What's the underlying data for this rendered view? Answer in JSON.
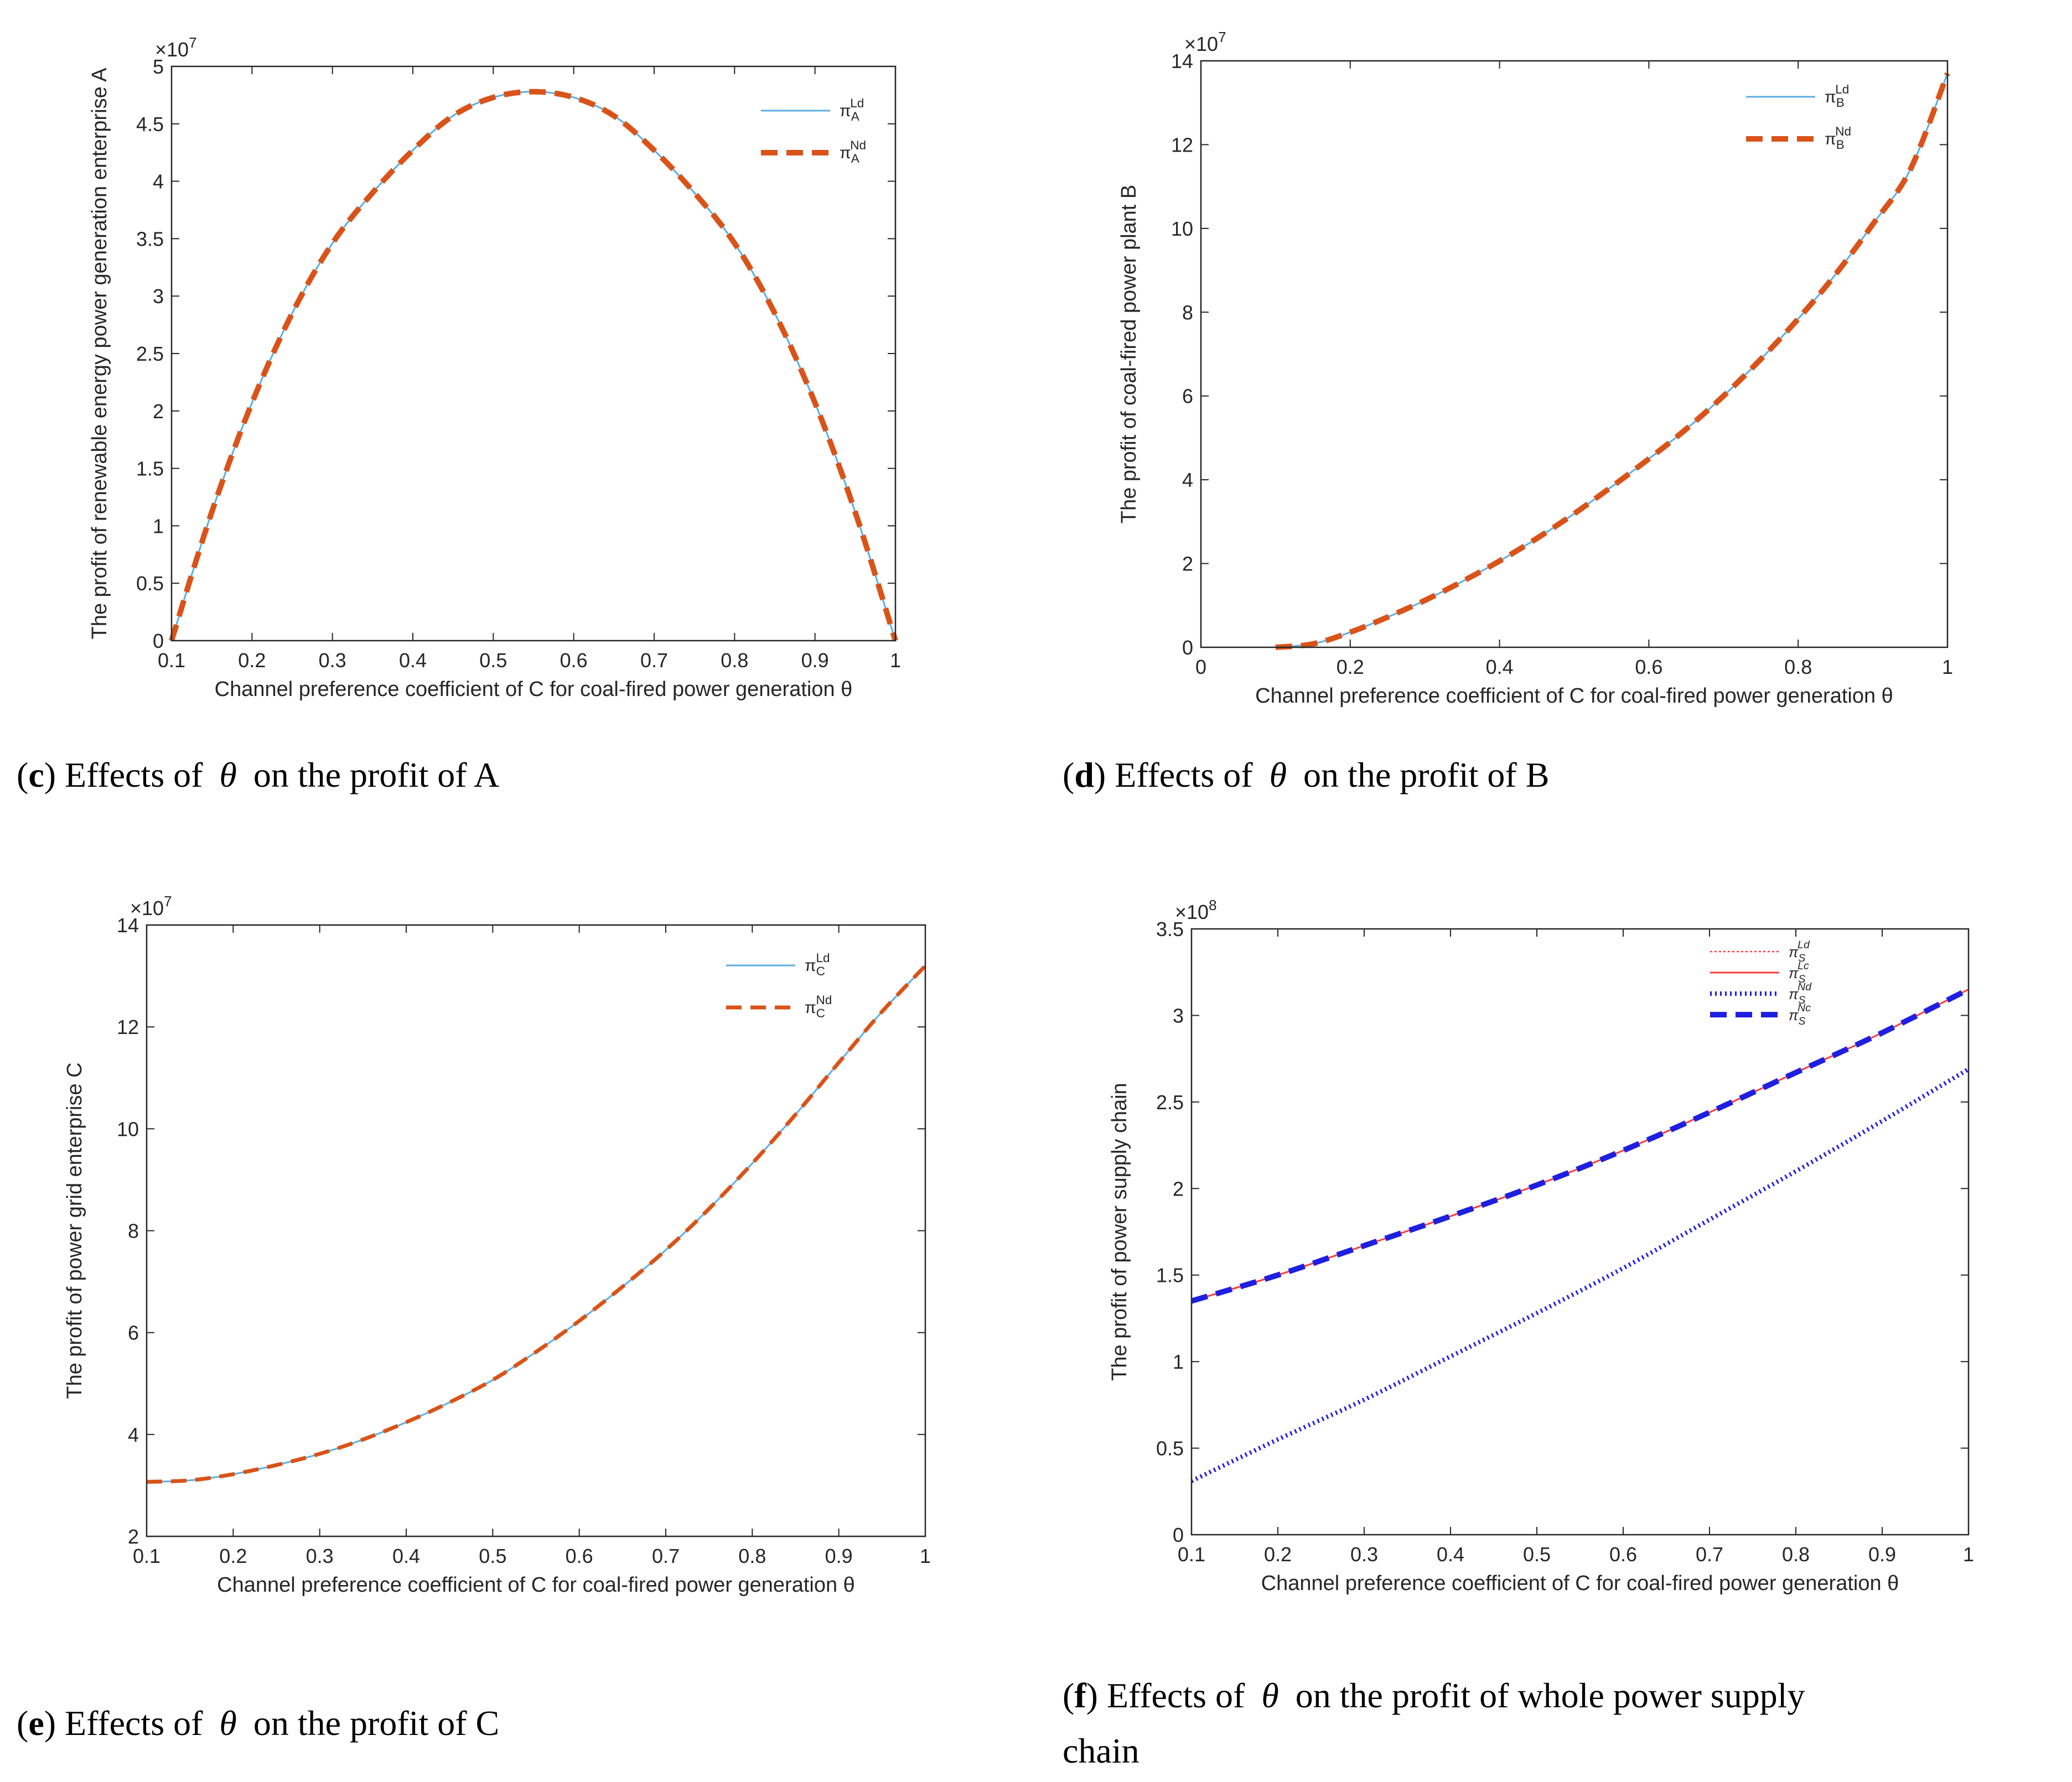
{
  "colors": {
    "blue_line": "#5aaee0",
    "orange_dash": "#d95319",
    "red_line": "#ff3b3b",
    "blue_strong": "#1f1fe0",
    "axis": "#262626"
  },
  "captions": [
    {
      "letter": "c",
      "pre": ") Effects of ",
      "theta": "θ",
      "post": " on the profit of A"
    },
    {
      "letter": "d",
      "pre": ") Effects of ",
      "theta": "θ",
      "post": " on the profit of B"
    },
    {
      "letter": "e",
      "pre": ") Effects of ",
      "theta": "θ",
      "post": " on the profit of C"
    },
    {
      "letter": "f",
      "pre": ") Effects of ",
      "theta": "θ",
      "post": " on the profit of whole power supply",
      "line2": "chain"
    }
  ],
  "chart_data": [
    {
      "type": "line",
      "panel": "c",
      "xlabel": "Channel preference coefficient of C for coal-fired power generation θ",
      "ylabel": "The profit of renewable energy power generation enterprise A",
      "exponent": "×10",
      "exponent_power": "7",
      "xlim": [
        0.1,
        1
      ],
      "ylim": [
        0,
        5
      ],
      "xticks": [
        "0.1",
        "0.2",
        "0.3",
        "0.4",
        "0.5",
        "0.6",
        "0.7",
        "0.8",
        "0.9",
        "1"
      ],
      "xtick_values": [
        0.1,
        0.2,
        0.3,
        0.4,
        0.5,
        0.6,
        0.7,
        0.8,
        0.9,
        1
      ],
      "yticks": [
        "0",
        "0.5",
        "1",
        "1.5",
        "2",
        "2.5",
        "3",
        "3.5",
        "4",
        "4.5",
        "5"
      ],
      "ytick_values": [
        0,
        0.5,
        1,
        1.5,
        2,
        2.5,
        3,
        3.5,
        4,
        4.5,
        5
      ],
      "x": [
        0.1,
        0.15,
        0.2,
        0.25,
        0.3,
        0.35,
        0.4,
        0.45,
        0.5,
        0.55,
        0.6,
        0.65,
        0.7,
        0.75,
        0.8,
        0.85,
        0.9,
        0.95,
        1
      ],
      "series": [
        {
          "name": "π_A^Ld",
          "base": "π",
          "sup": "Ld",
          "sub": "A",
          "style": "solid-thin",
          "color": "#5aaee0",
          "values": [
            0,
            1.12,
            2.07,
            2.85,
            3.46,
            3.9,
            4.27,
            4.57,
            4.73,
            4.78,
            4.73,
            4.57,
            4.27,
            3.9,
            3.46,
            2.85,
            2.07,
            1.12,
            0
          ]
        },
        {
          "name": "π_A^Nd",
          "base": "π",
          "sup": "Nd",
          "sub": "A",
          "style": "dash-thick",
          "color": "#d95319",
          "values": [
            0,
            1.12,
            2.07,
            2.85,
            3.46,
            3.9,
            4.27,
            4.57,
            4.73,
            4.78,
            4.73,
            4.57,
            4.27,
            3.9,
            3.46,
            2.85,
            2.07,
            1.12,
            0
          ]
        }
      ]
    },
    {
      "type": "line",
      "panel": "d",
      "xlabel": "Channel preference coefficient of C for coal-fired power generation θ",
      "ylabel": "The profit of coal-fired power plant B",
      "exponent": "×10",
      "exponent_power": "7",
      "xlim": [
        0,
        1
      ],
      "ylim": [
        0,
        14
      ],
      "xticks": [
        "0",
        "0.2",
        "0.4",
        "0.6",
        "0.8",
        "1"
      ],
      "xtick_values": [
        0,
        0.2,
        0.4,
        0.6,
        0.8,
        1
      ],
      "yticks": [
        "0",
        "2",
        "4",
        "6",
        "8",
        "10",
        "12",
        "14"
      ],
      "ytick_values": [
        0,
        2,
        4,
        6,
        8,
        10,
        12,
        14
      ],
      "x": [
        0.1,
        0.15,
        0.2,
        0.25,
        0.3,
        0.35,
        0.4,
        0.45,
        0.5,
        0.55,
        0.6,
        0.65,
        0.7,
        0.75,
        0.8,
        0.85,
        0.9,
        0.95,
        1
      ],
      "series": [
        {
          "name": "π_B^Ld",
          "base": "π",
          "sup": "Ld",
          "sub": "B",
          "style": "solid-thin",
          "color": "#5aaee0",
          "values": [
            0,
            0.08,
            0.36,
            0.72,
            1.12,
            1.57,
            2.06,
            2.6,
            3.19,
            3.83,
            4.5,
            5.21,
            6.0,
            6.88,
            7.84,
            8.9,
            10.1,
            11.4,
            13.7
          ]
        },
        {
          "name": "π_B^Nd",
          "base": "π",
          "sup": "Nd",
          "sub": "B",
          "style": "dash-thick",
          "color": "#d95319",
          "values": [
            0,
            0.08,
            0.36,
            0.72,
            1.12,
            1.57,
            2.06,
            2.6,
            3.19,
            3.83,
            4.5,
            5.21,
            6.0,
            6.88,
            7.84,
            8.9,
            10.1,
            11.4,
            13.7
          ]
        }
      ]
    },
    {
      "type": "line",
      "panel": "e",
      "xlabel": "Channel preference coefficient of C for coal-fired power generation θ",
      "ylabel": "The profit of power grid enterprise C",
      "exponent": "×10",
      "exponent_power": "7",
      "xlim": [
        0.1,
        1
      ],
      "ylim": [
        2,
        14
      ],
      "xticks": [
        "0.1",
        "0.2",
        "0.3",
        "0.4",
        "0.5",
        "0.6",
        "0.7",
        "0.8",
        "0.9",
        "1"
      ],
      "xtick_values": [
        0.1,
        0.2,
        0.3,
        0.4,
        0.5,
        0.6,
        0.7,
        0.8,
        0.9,
        1
      ],
      "yticks": [
        "2",
        "4",
        "6",
        "8",
        "10",
        "12",
        "14"
      ],
      "ytick_values": [
        2,
        4,
        6,
        8,
        10,
        12,
        14
      ],
      "x": [
        0.1,
        0.15,
        0.2,
        0.25,
        0.3,
        0.35,
        0.4,
        0.45,
        0.5,
        0.55,
        0.6,
        0.65,
        0.7,
        0.75,
        0.8,
        0.85,
        0.9,
        0.95,
        1
      ],
      "series": [
        {
          "name": "π_C^Ld",
          "base": "π",
          "sup": "Ld",
          "sub": "C",
          "style": "solid-thin",
          "color": "#5aaee0",
          "values": [
            3.07,
            3.1,
            3.22,
            3.4,
            3.62,
            3.9,
            4.24,
            4.63,
            5.07,
            5.62,
            6.23,
            6.9,
            7.62,
            8.43,
            9.32,
            10.28,
            11.3,
            12.3,
            13.2
          ]
        },
        {
          "name": "π_C^Nd",
          "base": "π",
          "sup": "Nd",
          "sub": "C",
          "style": "dash-medium",
          "color": "#d95319",
          "values": [
            3.07,
            3.1,
            3.22,
            3.4,
            3.62,
            3.9,
            4.24,
            4.63,
            5.07,
            5.62,
            6.23,
            6.9,
            7.62,
            8.43,
            9.32,
            10.28,
            11.3,
            12.3,
            13.2
          ]
        }
      ]
    },
    {
      "type": "line",
      "panel": "f",
      "xlabel": "Channel preference coefficient of C for coal-fired power generation θ",
      "ylabel": "The profit of power supply chain",
      "exponent": "×10",
      "exponent_power": "8",
      "xlim": [
        0.1,
        1
      ],
      "ylim": [
        0,
        3.5
      ],
      "xticks": [
        "0.1",
        "0.2",
        "0.3",
        "0.4",
        "0.5",
        "0.6",
        "0.7",
        "0.8",
        "0.9",
        "1"
      ],
      "xtick_values": [
        0.1,
        0.2,
        0.3,
        0.4,
        0.5,
        0.6,
        0.7,
        0.8,
        0.9,
        1
      ],
      "yticks": [
        "0",
        "0.5",
        "1",
        "1.5",
        "2",
        "2.5",
        "3",
        "3.5"
      ],
      "ytick_values": [
        0,
        0.5,
        1,
        1.5,
        2,
        2.5,
        3,
        3.5
      ],
      "x": [
        0.1,
        0.2,
        0.3,
        0.4,
        0.5,
        0.6,
        0.7,
        0.8,
        0.9,
        1
      ],
      "series": [
        {
          "name": "π_S^Ld",
          "base": "π",
          "sup": "Ld",
          "sub": "S",
          "style": "dotted-thin",
          "color": "#ff3b3b",
          "values": [
            1.35,
            1.5,
            1.67,
            1.84,
            2.02,
            2.22,
            2.44,
            2.67,
            2.9,
            3.15
          ]
        },
        {
          "name": "π_S^Lc",
          "base": "π",
          "sup": "Lc",
          "sub": "S",
          "style": "solid-thin",
          "color": "#ff3b3b",
          "values": [
            1.35,
            1.5,
            1.67,
            1.84,
            2.02,
            2.22,
            2.44,
            2.67,
            2.9,
            3.15
          ]
        },
        {
          "name": "π_S^Nd",
          "base": "π",
          "sup": "Nd",
          "sub": "S",
          "style": "dotted-thick",
          "color": "#1f1fe0",
          "values": [
            0.31,
            0.55,
            0.78,
            1.03,
            1.28,
            1.54,
            1.82,
            2.1,
            2.39,
            2.69
          ]
        },
        {
          "name": "π_S^Nc",
          "base": "π",
          "sup": "Nc",
          "sub": "S",
          "style": "dash-thick",
          "color": "#1f1fe0",
          "values": [
            1.35,
            1.5,
            1.67,
            1.84,
            2.02,
            2.22,
            2.44,
            2.67,
            2.9,
            3.15
          ]
        }
      ]
    }
  ]
}
